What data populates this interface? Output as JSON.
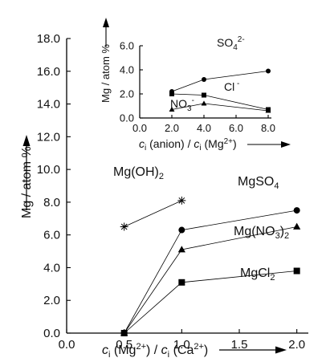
{
  "chart_data": [
    {
      "type": "scatter",
      "title": "",
      "xlabel": "c_i (Mg2+) / c_i (Ca2+)",
      "ylabel": "Mg / atom %",
      "xlim": [
        0.0,
        2.1
      ],
      "ylim": [
        0.0,
        18.0
      ],
      "x_ticks": [
        "0.0",
        "0.5",
        "1.0",
        "1.5",
        "2.0"
      ],
      "y_ticks": [
        "0.0",
        "2.0",
        "4.0",
        "6.0",
        "8.0",
        "10.0",
        "12.0",
        "14.0",
        "16.0",
        "18.0"
      ],
      "series": [
        {
          "name": "MgSO4",
          "marker": "circle",
          "x": [
            0.5,
            1.0,
            2.0
          ],
          "y": [
            0.0,
            6.3,
            7.5
          ]
        },
        {
          "name": "Mg(NO3)2",
          "marker": "triangle",
          "x": [
            0.5,
            1.0,
            2.0
          ],
          "y": [
            0.0,
            5.1,
            6.5
          ]
        },
        {
          "name": "MgCl2",
          "marker": "square",
          "x": [
            0.5,
            1.0,
            2.0
          ],
          "y": [
            0.0,
            3.1,
            3.8
          ]
        },
        {
          "name": "Mg(OH)2",
          "marker": "asterisk",
          "x": [
            0.5,
            1.0
          ],
          "y": [
            6.5,
            8.1
          ]
        }
      ]
    },
    {
      "type": "scatter",
      "title": "",
      "xlabel": "c_i (anion) / c_i (Mg2+)",
      "ylabel": "Mg / atom %",
      "xlim": [
        0.0,
        8.0
      ],
      "ylim": [
        0.0,
        6.0
      ],
      "x_ticks": [
        "0.0",
        "2.0",
        "4.0",
        "6.0",
        "8.0"
      ],
      "y_ticks": [
        "0.0",
        "2.0",
        "4.0",
        "6.0"
      ],
      "series": [
        {
          "name": "SO42-",
          "marker": "circle",
          "x": [
            2.0,
            4.0,
            8.0
          ],
          "y": [
            2.2,
            3.2,
            3.9
          ]
        },
        {
          "name": "Cl-",
          "marker": "square",
          "x": [
            2.0,
            4.0,
            8.0
          ],
          "y": [
            2.0,
            1.9,
            0.7
          ]
        },
        {
          "name": "NO3-",
          "marker": "triangle",
          "x": [
            2.0,
            4.0,
            8.0
          ],
          "y": [
            0.7,
            1.2,
            0.6
          ]
        }
      ]
    }
  ]
}
